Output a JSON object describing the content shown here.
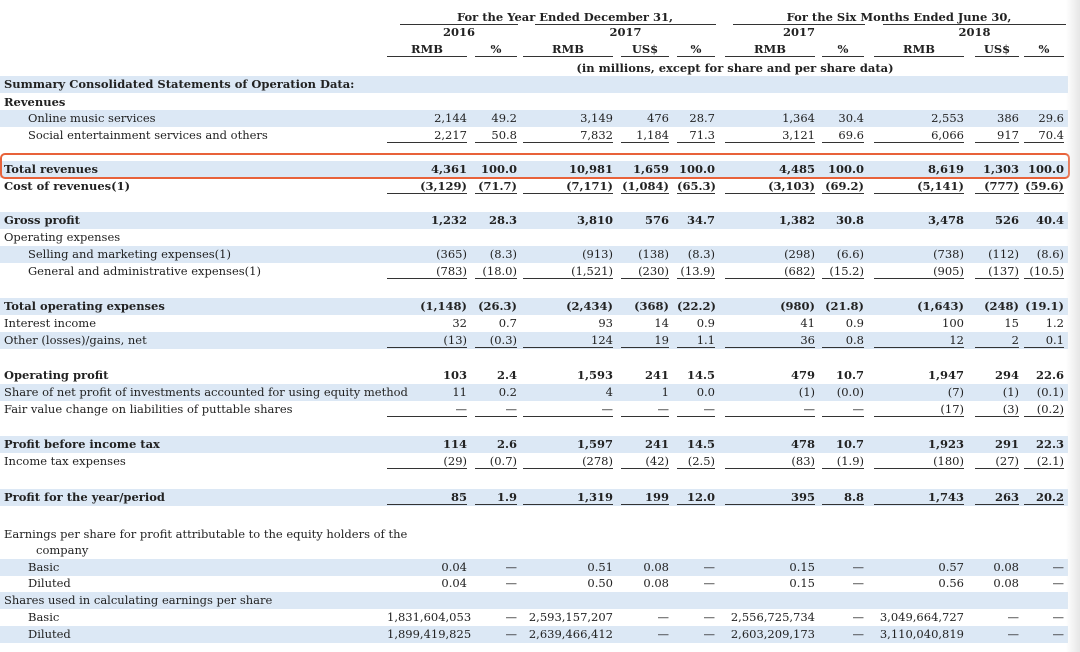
{
  "header": {
    "year_group": "For the Year Ended December 31,",
    "six_month_group": "For the Six Months Ended June 30,",
    "years": [
      "2016",
      "2017",
      "2017",
      "2018"
    ],
    "currencies": [
      "RMB",
      "%",
      "RMB",
      "US$",
      "%",
      "RMB",
      "%",
      "RMB",
      "US$",
      "%"
    ],
    "note": "(in millions, except for share and per share data)"
  },
  "rows": [
    {
      "label": "Summary Consolidated Statements of Operation Data:",
      "bold": true,
      "shade": true,
      "indent": 0,
      "values": []
    },
    {
      "label": "Revenues",
      "bold": true,
      "indent": 0,
      "values": []
    },
    {
      "label": "Online music services",
      "indent": 2,
      "shade": true,
      "values": [
        "2,144",
        "49.2",
        "3,149",
        "476",
        "28.7",
        "1,364",
        "30.4",
        "2,553",
        "386",
        "29.6"
      ]
    },
    {
      "label": "Social entertainment services and others",
      "indent": 2,
      "values": [
        "2,217",
        "50.8",
        "7,832",
        "1,184",
        "71.3",
        "3,121",
        "69.6",
        "6,066",
        "917",
        "70.4"
      ],
      "underline": true
    },
    {
      "label": "Total revenues",
      "bold": true,
      "indent": 0,
      "shade": true,
      "values": [
        "4,361",
        "100.0",
        "10,981",
        "1,659",
        "100.0",
        "4,485",
        "100.0",
        "8,619",
        "1,303",
        "100.0"
      ]
    },
    {
      "label": "Cost of revenues(1)",
      "bold": true,
      "indent": 0,
      "values": [
        "(3,129)",
        "(71.7)",
        "(7,171)",
        "(1,084)",
        "(65.3)",
        "(3,103)",
        "(69.2)",
        "(5,141)",
        "(777)",
        "(59.6)"
      ],
      "underline": true
    },
    {
      "label": "Gross profit",
      "bold": true,
      "indent": 0,
      "shade": true,
      "values": [
        "1,232",
        "28.3",
        "3,810",
        "576",
        "34.7",
        "1,382",
        "30.8",
        "3,478",
        "526",
        "40.4"
      ]
    },
    {
      "label": "Operating expenses",
      "indent": 0,
      "values": []
    },
    {
      "label": "Selling and marketing expenses(1)",
      "indent": 2,
      "shade": true,
      "values": [
        "(365)",
        "(8.3)",
        "(913)",
        "(138)",
        "(8.3)",
        "(298)",
        "(6.6)",
        "(738)",
        "(112)",
        "(8.6)"
      ]
    },
    {
      "label": "General and administrative expenses(1)",
      "indent": 2,
      "values": [
        "(783)",
        "(18.0)",
        "(1,521)",
        "(230)",
        "(13.9)",
        "(682)",
        "(15.2)",
        "(905)",
        "(137)",
        "(10.5)"
      ],
      "underline": true
    },
    {
      "label": "Total operating expenses",
      "bold": true,
      "indent": 0,
      "shade": true,
      "values": [
        "(1,148)",
        "(26.3)",
        "(2,434)",
        "(368)",
        "(22.2)",
        "(980)",
        "(21.8)",
        "(1,643)",
        "(248)",
        "(19.1)"
      ]
    },
    {
      "label": "Interest income",
      "indent": 0,
      "values": [
        "32",
        "0.7",
        "93",
        "14",
        "0.9",
        "41",
        "0.9",
        "100",
        "15",
        "1.2"
      ]
    },
    {
      "label": "Other (losses)/gains, net",
      "indent": 0,
      "shade": true,
      "values": [
        "(13)",
        "(0.3)",
        "124",
        "19",
        "1.1",
        "36",
        "0.8",
        "12",
        "2",
        "0.1"
      ],
      "underline": true
    },
    {
      "label": "Operating profit",
      "bold": true,
      "indent": 0,
      "values": [
        "103",
        "2.4",
        "1,593",
        "241",
        "14.5",
        "479",
        "10.7",
        "1,947",
        "294",
        "22.6"
      ]
    },
    {
      "label": "Share of net profit of investments accounted for using equity method",
      "indent": 0,
      "shade": true,
      "values": [
        "11",
        "0.2",
        "4",
        "1",
        "0.0",
        "(1)",
        "(0.0)",
        "(7)",
        "(1)",
        "(0.1)"
      ]
    },
    {
      "label": "Fair value change on liabilities of puttable shares",
      "indent": 0,
      "values": [
        "—",
        "—",
        "—",
        "—",
        "—",
        "—",
        "—",
        "(17)",
        "(3)",
        "(0.2)"
      ],
      "underline": true
    },
    {
      "label": "Profit before income tax",
      "bold": true,
      "indent": 0,
      "shade": true,
      "values": [
        "114",
        "2.6",
        "1,597",
        "241",
        "14.5",
        "478",
        "10.7",
        "1,923",
        "291",
        "22.3"
      ]
    },
    {
      "label": "Income tax expenses",
      "indent": 0,
      "values": [
        "(29)",
        "(0.7)",
        "(278)",
        "(42)",
        "(2.5)",
        "(83)",
        "(1.9)",
        "(180)",
        "(27)",
        "(2.1)"
      ],
      "underline": true
    },
    {
      "label": "Profit for the year/period",
      "bold": true,
      "indent": 0,
      "shade": true,
      "values": [
        "85",
        "1.9",
        "1,319",
        "199",
        "12.0",
        "395",
        "8.8",
        "1,743",
        "263",
        "20.2"
      ],
      "underline": true
    },
    {
      "label": "Earnings per share for profit attributable to the equity holders of the",
      "indent": 0,
      "values": []
    },
    {
      "label": "company",
      "indent": 3,
      "values": []
    },
    {
      "label": "Basic",
      "indent": 2,
      "shade": true,
      "values": [
        "0.04",
        "—",
        "0.51",
        "0.08",
        "—",
        "0.15",
        "—",
        "0.57",
        "0.08",
        "—"
      ]
    },
    {
      "label": "Diluted",
      "indent": 2,
      "values": [
        "0.04",
        "—",
        "0.50",
        "0.08",
        "—",
        "0.15",
        "—",
        "0.56",
        "0.08",
        "—"
      ]
    },
    {
      "label": "Shares used in calculating earnings per share",
      "indent": 0,
      "shade": true,
      "values": []
    },
    {
      "label": "Basic",
      "indent": 2,
      "values": [
        "1,831,604,053",
        "—",
        "2,593,157,207",
        "—",
        "—",
        "2,556,725,734",
        "—",
        "3,049,664,727",
        "—",
        "—"
      ]
    },
    {
      "label": "Diluted",
      "indent": 2,
      "shade": true,
      "values": [
        "1,899,419,825",
        "—",
        "2,639,466,412",
        "—",
        "—",
        "2,603,209,173",
        "—",
        "3,110,040,819",
        "—",
        "—"
      ]
    }
  ],
  "highlight_row": "Total revenues",
  "colors": {
    "row_shade": "#dce8f5",
    "highlight_border": "#e8623a"
  }
}
